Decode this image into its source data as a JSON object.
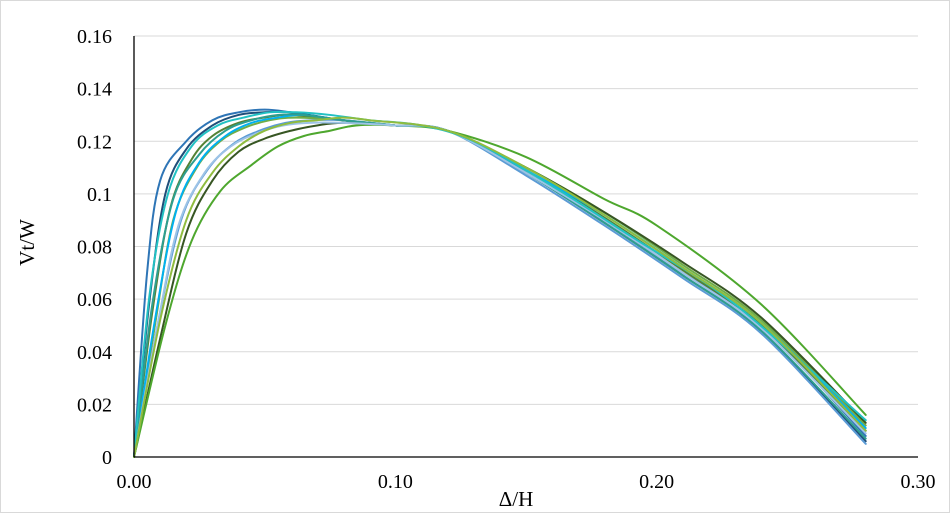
{
  "chart_data": {
    "type": "line",
    "title": "",
    "xlabel": "Δ/H",
    "ylabel": "Vt/W",
    "xlim": [
      0,
      0.3
    ],
    "ylim": [
      0,
      0.16
    ],
    "x_ticks": [
      {
        "value": 0.0,
        "label": "0.00"
      },
      {
        "value": 0.1,
        "label": "0.10"
      },
      {
        "value": 0.2,
        "label": "0.20"
      },
      {
        "value": 0.3,
        "label": "0.30"
      }
    ],
    "y_ticks": [
      {
        "value": 0,
        "label": "0"
      },
      {
        "value": 0.02,
        "label": "0.02"
      },
      {
        "value": 0.04,
        "label": "0.04"
      },
      {
        "value": 0.06,
        "label": "0.06"
      },
      {
        "value": 0.08,
        "label": "0.08"
      },
      {
        "value": 0.1,
        "label": "0.1"
      },
      {
        "value": 0.12,
        "label": "0.12"
      },
      {
        "value": 0.14,
        "label": "0.14"
      },
      {
        "value": 0.16,
        "label": "0.16"
      }
    ],
    "grid": "horizontal",
    "legend": "none",
    "series": [
      {
        "color": "#2e75b6",
        "x": [
          0,
          0.005,
          0.01,
          0.02,
          0.03,
          0.04,
          0.05,
          0.06,
          0.08,
          0.1,
          0.12,
          0.15,
          0.18,
          0.21,
          0.24,
          0.28
        ],
        "y": [
          0,
          0.07,
          0.105,
          0.12,
          0.128,
          0.131,
          0.132,
          0.131,
          0.128,
          0.126,
          0.124,
          0.108,
          0.09,
          0.07,
          0.05,
          0.008
        ]
      },
      {
        "color": "#1f4e79",
        "x": [
          0,
          0.006,
          0.012,
          0.02,
          0.03,
          0.04,
          0.05,
          0.06,
          0.08,
          0.1,
          0.12,
          0.15,
          0.18,
          0.21,
          0.24,
          0.28
        ],
        "y": [
          0,
          0.06,
          0.1,
          0.117,
          0.126,
          0.13,
          0.131,
          0.131,
          0.128,
          0.126,
          0.124,
          0.108,
          0.089,
          0.069,
          0.048,
          0.006
        ]
      },
      {
        "color": "#548235",
        "x": [
          0,
          0.007,
          0.014,
          0.022,
          0.03,
          0.04,
          0.05,
          0.06,
          0.08,
          0.1,
          0.12,
          0.15,
          0.18,
          0.21,
          0.24,
          0.28
        ],
        "y": [
          0,
          0.055,
          0.095,
          0.113,
          0.122,
          0.127,
          0.129,
          0.13,
          0.128,
          0.126,
          0.124,
          0.109,
          0.091,
          0.071,
          0.05,
          0.01
        ]
      },
      {
        "color": "#70ad47",
        "x": [
          0,
          0.008,
          0.015,
          0.024,
          0.033,
          0.042,
          0.052,
          0.062,
          0.08,
          0.1,
          0.12,
          0.15,
          0.18,
          0.21,
          0.24,
          0.28
        ],
        "y": [
          0,
          0.05,
          0.09,
          0.11,
          0.12,
          0.125,
          0.128,
          0.129,
          0.128,
          0.126,
          0.124,
          0.11,
          0.093,
          0.073,
          0.052,
          0.012
        ]
      },
      {
        "color": "#00b0f0",
        "x": [
          0,
          0.008,
          0.016,
          0.025,
          0.035,
          0.045,
          0.055,
          0.065,
          0.08,
          0.1,
          0.12,
          0.15,
          0.18,
          0.21,
          0.24,
          0.28
        ],
        "y": [
          0,
          0.052,
          0.093,
          0.112,
          0.122,
          0.127,
          0.129,
          0.13,
          0.128,
          0.126,
          0.124,
          0.109,
          0.092,
          0.072,
          0.051,
          0.011
        ]
      },
      {
        "color": "#5b9bd5",
        "x": [
          0,
          0.009,
          0.018,
          0.028,
          0.038,
          0.048,
          0.058,
          0.068,
          0.08,
          0.1,
          0.12,
          0.15,
          0.18,
          0.21,
          0.24,
          0.28
        ],
        "y": [
          0,
          0.05,
          0.09,
          0.109,
          0.119,
          0.124,
          0.127,
          0.128,
          0.128,
          0.126,
          0.124,
          0.107,
          0.088,
          0.068,
          0.047,
          0.005
        ]
      },
      {
        "color": "#375623",
        "x": [
          0,
          0.01,
          0.02,
          0.03,
          0.04,
          0.05,
          0.06,
          0.07,
          0.08,
          0.1,
          0.12,
          0.15,
          0.18,
          0.21,
          0.24,
          0.28
        ],
        "y": [
          0,
          0.045,
          0.085,
          0.105,
          0.116,
          0.121,
          0.124,
          0.126,
          0.127,
          0.126,
          0.124,
          0.11,
          0.093,
          0.074,
          0.053,
          0.013
        ]
      },
      {
        "color": "#4ea72e",
        "x": [
          0,
          0.012,
          0.022,
          0.033,
          0.045,
          0.055,
          0.065,
          0.075,
          0.085,
          0.1,
          0.12,
          0.15,
          0.18,
          0.2,
          0.24,
          0.28
        ],
        "y": [
          0,
          0.05,
          0.082,
          0.101,
          0.111,
          0.118,
          0.122,
          0.124,
          0.126,
          0.126,
          0.124,
          0.114,
          0.098,
          0.088,
          0.058,
          0.016
        ]
      },
      {
        "color": "#2e9e8f",
        "x": [
          0,
          0.007,
          0.015,
          0.025,
          0.035,
          0.045,
          0.055,
          0.065,
          0.08,
          0.1,
          0.12,
          0.15,
          0.18,
          0.21,
          0.24,
          0.28
        ],
        "y": [
          0,
          0.058,
          0.098,
          0.115,
          0.124,
          0.128,
          0.13,
          0.13,
          0.128,
          0.126,
          0.124,
          0.108,
          0.089,
          0.069,
          0.048,
          0.007
        ]
      },
      {
        "color": "#9dc3e6",
        "x": [
          0,
          0.009,
          0.017,
          0.027,
          0.037,
          0.047,
          0.057,
          0.067,
          0.08,
          0.1,
          0.12,
          0.15,
          0.18,
          0.21,
          0.24,
          0.28
        ],
        "y": [
          0,
          0.05,
          0.088,
          0.108,
          0.118,
          0.123,
          0.126,
          0.127,
          0.127,
          0.126,
          0.124,
          0.108,
          0.09,
          0.07,
          0.049,
          0.009
        ]
      },
      {
        "color": "#22c1c3",
        "x": [
          0,
          0.006,
          0.013,
          0.022,
          0.032,
          0.042,
          0.052,
          0.062,
          0.075,
          0.09,
          0.11,
          0.13,
          0.16,
          0.19,
          0.23,
          0.28
        ],
        "y": [
          0,
          0.062,
          0.1,
          0.118,
          0.126,
          0.129,
          0.131,
          0.131,
          0.13,
          0.128,
          0.126,
          0.12,
          0.103,
          0.084,
          0.058,
          0.014
        ]
      },
      {
        "color": "#8fbc3f",
        "x": [
          0,
          0.01,
          0.02,
          0.03,
          0.04,
          0.05,
          0.06,
          0.07,
          0.08,
          0.09,
          0.12,
          0.15,
          0.18,
          0.21,
          0.24,
          0.28
        ],
        "y": [
          0,
          0.052,
          0.09,
          0.108,
          0.118,
          0.124,
          0.127,
          0.128,
          0.129,
          0.128,
          0.124,
          0.11,
          0.092,
          0.072,
          0.051,
          0.01
        ]
      }
    ]
  }
}
